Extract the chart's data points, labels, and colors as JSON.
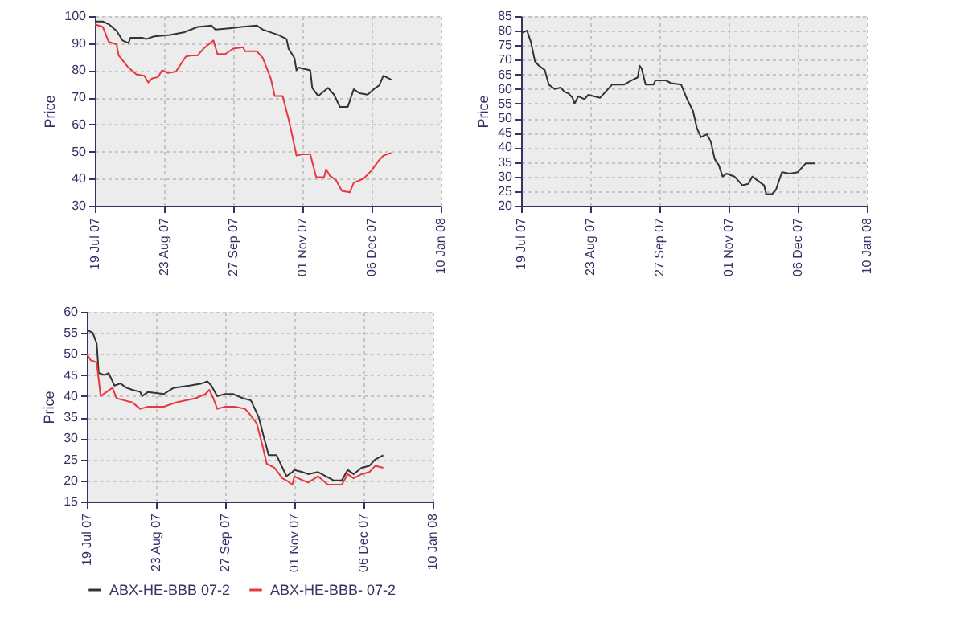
{
  "chart_data": [
    {
      "type": "line",
      "ylabel": "Price",
      "xlim": [
        "2007-07-19",
        "2008-01-10"
      ],
      "xticks": [
        {
          "value": "2007-07-19",
          "label": "19 Jul 07"
        },
        {
          "value": "2007-08-23",
          "label": "23 Aug 07"
        },
        {
          "value": "2007-09-27",
          "label": "27 Sep 07"
        },
        {
          "value": "2007-11-01",
          "label": "01 Nov 07"
        },
        {
          "value": "2007-12-06",
          "label": "06 Dec 07"
        },
        {
          "value": "2008-01-10",
          "label": "10 Jan 08"
        }
      ],
      "ylim": [
        30,
        100
      ],
      "yticks": [
        30,
        40,
        50,
        60,
        70,
        80,
        90,
        100
      ],
      "grid": true,
      "series": [
        {
          "color": "#333333",
          "x": [
            "2007-07-19",
            "2007-07-23",
            "2007-07-26",
            "2007-07-30",
            "2007-08-02",
            "2007-08-05",
            "2007-08-06",
            "2007-08-12",
            "2007-08-14",
            "2007-08-18",
            "2007-08-26",
            "2007-09-02",
            "2007-09-09",
            "2007-09-16",
            "2007-09-18",
            "2007-09-25",
            "2007-10-01",
            "2007-10-09",
            "2007-10-12",
            "2007-10-20",
            "2007-10-24",
            "2007-10-25",
            "2007-10-28",
            "2007-10-29",
            "2007-10-30",
            "2007-11-05",
            "2007-11-06",
            "2007-11-09",
            "2007-11-14",
            "2007-11-17",
            "2007-11-20",
            "2007-11-24",
            "2007-11-27",
            "2007-11-30",
            "2007-12-04",
            "2007-12-08",
            "2007-12-10",
            "2007-12-12",
            "2007-12-16"
          ],
          "values": [
            98,
            98,
            97,
            94.5,
            91,
            90,
            92,
            92,
            91.5,
            92.5,
            93,
            94,
            96,
            96.5,
            95,
            95.5,
            96,
            96.5,
            95,
            93,
            91.5,
            88,
            84.5,
            80,
            81,
            80,
            73.5,
            70.5,
            73.5,
            71,
            66.5,
            66.5,
            73,
            71.5,
            71,
            73.5,
            74.5,
            78,
            76.5
          ]
        },
        {
          "color": "#e8383f",
          "x": [
            "2007-07-19",
            "2007-07-23",
            "2007-07-26",
            "2007-07-30",
            "2007-07-31",
            "2007-08-05",
            "2007-08-09",
            "2007-08-13",
            "2007-08-15",
            "2007-08-17",
            "2007-08-20",
            "2007-08-22",
            "2007-08-25",
            "2007-08-29",
            "2007-09-03",
            "2007-09-06",
            "2007-09-09",
            "2007-09-12",
            "2007-09-17",
            "2007-09-19",
            "2007-09-23",
            "2007-09-27",
            "2007-10-02",
            "2007-10-03",
            "2007-10-09",
            "2007-10-12",
            "2007-10-16",
            "2007-10-18",
            "2007-10-22",
            "2007-10-25",
            "2007-10-27",
            "2007-10-29",
            "2007-11-01",
            "2007-11-05",
            "2007-11-08",
            "2007-11-12",
            "2007-11-13",
            "2007-11-15",
            "2007-11-18",
            "2007-11-21",
            "2007-11-25",
            "2007-11-27",
            "2007-12-02",
            "2007-12-06",
            "2007-12-10",
            "2007-12-12",
            "2007-12-16"
          ],
          "values": [
            97,
            96,
            90.5,
            89.5,
            85.5,
            81,
            78.5,
            78,
            75.5,
            77,
            77.5,
            80,
            79,
            79.5,
            85,
            85.5,
            85.5,
            88,
            91,
            86,
            86,
            88,
            88.5,
            87,
            87,
            84.5,
            77,
            70.5,
            70.5,
            62,
            55.5,
            48.5,
            49,
            49,
            40.5,
            40.5,
            43.5,
            41,
            39.5,
            35.5,
            35,
            38.5,
            40,
            43,
            47,
            48.5,
            49.5
          ]
        }
      ]
    },
    {
      "type": "line",
      "ylabel": "Price",
      "xlim": [
        "2007-07-19",
        "2008-01-10"
      ],
      "xticks": [
        {
          "value": "2007-07-19",
          "label": "19 Jul 07"
        },
        {
          "value": "2007-08-23",
          "label": "23 Aug 07"
        },
        {
          "value": "2007-09-27",
          "label": "27 Sep 07"
        },
        {
          "value": "2007-11-01",
          "label": "01 Nov 07"
        },
        {
          "value": "2007-12-06",
          "label": "06 Dec 07"
        },
        {
          "value": "2008-01-10",
          "label": "10 Jan 08"
        }
      ],
      "ylim": [
        20,
        85
      ],
      "yticks": [
        20,
        25,
        30,
        35,
        40,
        45,
        50,
        55,
        60,
        65,
        70,
        75,
        80,
        85
      ],
      "grid": true,
      "series": [
        {
          "color": "#333333",
          "x": [
            "2007-07-19",
            "2007-07-20",
            "2007-07-22",
            "2007-07-24",
            "2007-07-26",
            "2007-07-28",
            "2007-07-31",
            "2007-08-01",
            "2007-08-02",
            "2007-08-05",
            "2007-08-08",
            "2007-08-10",
            "2007-08-12",
            "2007-08-14",
            "2007-08-15",
            "2007-08-17",
            "2007-08-20",
            "2007-08-22",
            "2007-08-28",
            "2007-09-03",
            "2007-09-09",
            "2007-09-13",
            "2007-09-16",
            "2007-09-17",
            "2007-09-18",
            "2007-09-20",
            "2007-09-24",
            "2007-09-25",
            "2007-09-30",
            "2007-10-03",
            "2007-10-08",
            "2007-10-11",
            "2007-10-14",
            "2007-10-16",
            "2007-10-18",
            "2007-10-21",
            "2007-10-23",
            "2007-10-25",
            "2007-10-27",
            "2007-10-29",
            "2007-10-31",
            "2007-11-04",
            "2007-11-08",
            "2007-11-11",
            "2007-11-13",
            "2007-11-16",
            "2007-11-19",
            "2007-11-20",
            "2007-11-23",
            "2007-11-25",
            "2007-11-28",
            "2007-12-02",
            "2007-12-06",
            "2007-12-08",
            "2007-12-10",
            "2007-12-15"
          ],
          "values": [
            79,
            79.5,
            80,
            76,
            69.5,
            68,
            66.5,
            64,
            61.5,
            60,
            60.5,
            59,
            58.5,
            57,
            55,
            57.5,
            56.5,
            58,
            57,
            61.5,
            61.5,
            63,
            64,
            68,
            67,
            61.5,
            61.5,
            63,
            63,
            62,
            61.5,
            56.5,
            52.5,
            46.5,
            43.5,
            44.5,
            42,
            36,
            34,
            30,
            31,
            30,
            27,
            27.5,
            30,
            28.5,
            27,
            24,
            24,
            25.5,
            31.5,
            31,
            31.5,
            33,
            34.5,
            34.5
          ]
        }
      ]
    },
    {
      "type": "line",
      "ylabel": "Price",
      "xlim": [
        "2007-07-19",
        "2008-01-10"
      ],
      "xticks": [
        {
          "value": "2007-07-19",
          "label": "19 Jul 07"
        },
        {
          "value": "2007-08-23",
          "label": "23 Aug 07"
        },
        {
          "value": "2007-09-27",
          "label": "27 Sep 07"
        },
        {
          "value": "2007-11-01",
          "label": "01 Nov 07"
        },
        {
          "value": "2007-12-06",
          "label": "06 Dec 07"
        },
        {
          "value": "2008-01-10",
          "label": "10 Jan 08"
        }
      ],
      "ylim": [
        15,
        60
      ],
      "yticks": [
        15,
        20,
        25,
        30,
        35,
        40,
        45,
        50,
        55,
        60
      ],
      "grid": true,
      "legend": "bottom",
      "series": [
        {
          "name": "ABX-HE-BBB 07-2",
          "color": "#333333",
          "x": [
            "2007-07-19",
            "2007-07-20",
            "2007-07-22",
            "2007-07-24",
            "2007-07-25",
            "2007-07-28",
            "2007-07-30",
            "2007-08-02",
            "2007-08-05",
            "2007-08-08",
            "2007-08-11",
            "2007-08-15",
            "2007-08-16",
            "2007-08-19",
            "2007-08-27",
            "2007-09-01",
            "2007-09-09",
            "2007-09-15",
            "2007-09-18",
            "2007-09-20",
            "2007-09-23",
            "2007-09-27",
            "2007-10-01",
            "2007-10-06",
            "2007-10-10",
            "2007-10-14",
            "2007-10-17",
            "2007-10-19",
            "2007-10-23",
            "2007-10-26",
            "2007-10-28",
            "2007-10-31",
            "2007-11-01",
            "2007-11-05",
            "2007-11-08",
            "2007-11-13",
            "2007-11-17",
            "2007-11-21",
            "2007-11-25",
            "2007-11-28",
            "2007-12-01",
            "2007-12-05",
            "2007-12-09",
            "2007-12-12",
            "2007-12-16"
          ],
          "values": [
            56,
            55.5,
            55,
            52.5,
            45.5,
            45,
            45.5,
            42.5,
            43,
            42,
            41.5,
            41,
            40,
            41,
            40.5,
            42,
            42.5,
            43,
            43.5,
            42.5,
            40,
            40.5,
            40.5,
            39.5,
            39,
            35,
            29.5,
            26,
            26,
            23,
            21,
            22,
            22.5,
            22,
            21.5,
            22,
            21,
            20,
            20,
            22.5,
            21.5,
            23,
            23.5,
            25,
            26
          ]
        },
        {
          "name": "ABX-HE-BBB- 07-2",
          "color": "#e8383f",
          "x": [
            "2007-07-19",
            "2007-07-21",
            "2007-07-24",
            "2007-07-26",
            "2007-07-29",
            "2007-08-01",
            "2007-08-03",
            "2007-08-07",
            "2007-08-11",
            "2007-08-15",
            "2007-08-19",
            "2007-08-27",
            "2007-09-02",
            "2007-09-12",
            "2007-09-17",
            "2007-09-19",
            "2007-09-21",
            "2007-09-23",
            "2007-09-27",
            "2007-10-02",
            "2007-10-07",
            "2007-10-09",
            "2007-10-13",
            "2007-10-16",
            "2007-10-18",
            "2007-10-22",
            "2007-10-26",
            "2007-10-28",
            "2007-10-31",
            "2007-11-01",
            "2007-11-03",
            "2007-11-08",
            "2007-11-13",
            "2007-11-18",
            "2007-11-25",
            "2007-11-28",
            "2007-12-01",
            "2007-12-05",
            "2007-12-09",
            "2007-12-12",
            "2007-12-16"
          ],
          "values": [
            50,
            48.5,
            48,
            40,
            41,
            42,
            39.5,
            39,
            38.5,
            37,
            37.5,
            37.5,
            38.5,
            39.5,
            40.5,
            41.5,
            39.5,
            37,
            37.5,
            37.5,
            37,
            36,
            33.5,
            28,
            24,
            23,
            20.5,
            20,
            19,
            21,
            20.5,
            19.5,
            21,
            19,
            19,
            21.5,
            20.5,
            21.5,
            22,
            23.5,
            23
          ]
        }
      ]
    }
  ]
}
